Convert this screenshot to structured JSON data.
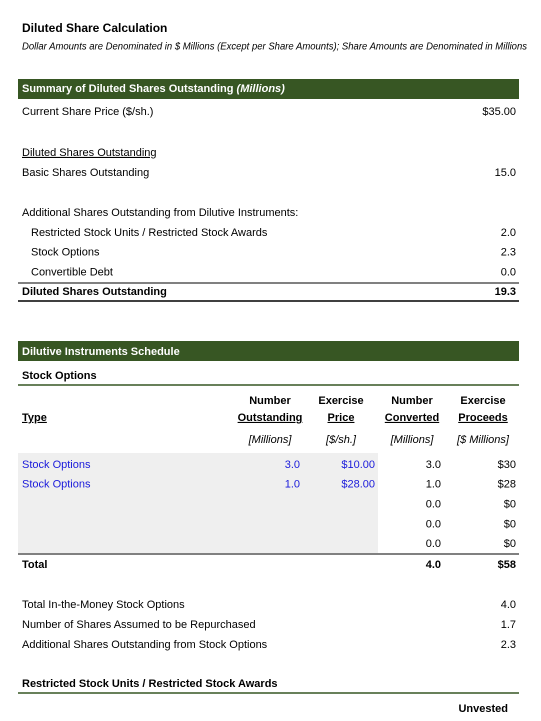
{
  "header": {
    "title": "Diluted Share Calculation",
    "subtitle": "Dollar Amounts are Denominated in $ Millions (Except per Share Amounts); Share Amounts are Denominated in Millions"
  },
  "summary": {
    "title": "Summary of Diluted Shares Outstanding",
    "title_unit": "(Millions)",
    "share_price": {
      "label": "Current Share Price ($/sh.)",
      "value": "$35.00"
    },
    "diluted_heading": "Diluted Shares Outstanding",
    "basic": {
      "label": "Basic Shares Outstanding",
      "value": "15.0"
    },
    "additional_heading": "Additional Shares Outstanding from Dilutive Instruments:",
    "instruments": [
      {
        "label": "Restricted Stock Units / Restricted Stock Awards",
        "value": "2.0"
      },
      {
        "label": "Stock Options",
        "value": "2.3"
      },
      {
        "label": "Convertible Debt",
        "value": "0.0"
      }
    ],
    "total": {
      "label": "Diluted Shares Outstanding",
      "value": "19.3"
    }
  },
  "schedule": {
    "title": "Dilutive Instruments Schedule",
    "stock_options": {
      "title": "Stock Options",
      "type_header": "Type",
      "columns": [
        {
          "label": [
            "Number",
            "Outstanding"
          ],
          "unit": "[Millions]"
        },
        {
          "label": [
            "Exercise",
            "Price"
          ],
          "unit": "[$/sh.]"
        },
        {
          "label": [
            "Number",
            "Converted"
          ],
          "unit": "[Millions]"
        },
        {
          "label": [
            "Exercise",
            "Proceeds"
          ],
          "unit": "[$ Millions]"
        }
      ],
      "rows": [
        {
          "type": "Stock Options",
          "outstanding": "3.0",
          "price": "$10.00",
          "converted": "3.0",
          "proceeds": "$30"
        },
        {
          "type": "Stock Options",
          "outstanding": "1.0",
          "price": "$28.00",
          "converted": "1.0",
          "proceeds": "$28"
        },
        {
          "converted": "0.0",
          "proceeds": "$0"
        },
        {
          "converted": "0.0",
          "proceeds": "$0"
        },
        {
          "converted": "0.0",
          "proceeds": "$0"
        }
      ],
      "total": {
        "label": "Total",
        "converted": "4.0",
        "proceeds": "$58"
      },
      "summary": [
        {
          "label": "Total In-the-Money Stock Options",
          "value": "4.0"
        },
        {
          "label": "Number of Shares Assumed to be Repurchased",
          "value": "1.7"
        },
        {
          "label": "Additional Shares Outstanding from Stock Options",
          "value": "2.3"
        }
      ]
    },
    "rsu": {
      "title": "Restricted Stock Units / Restricted Stock Awards",
      "columns": [
        "Unvested"
      ]
    }
  }
}
